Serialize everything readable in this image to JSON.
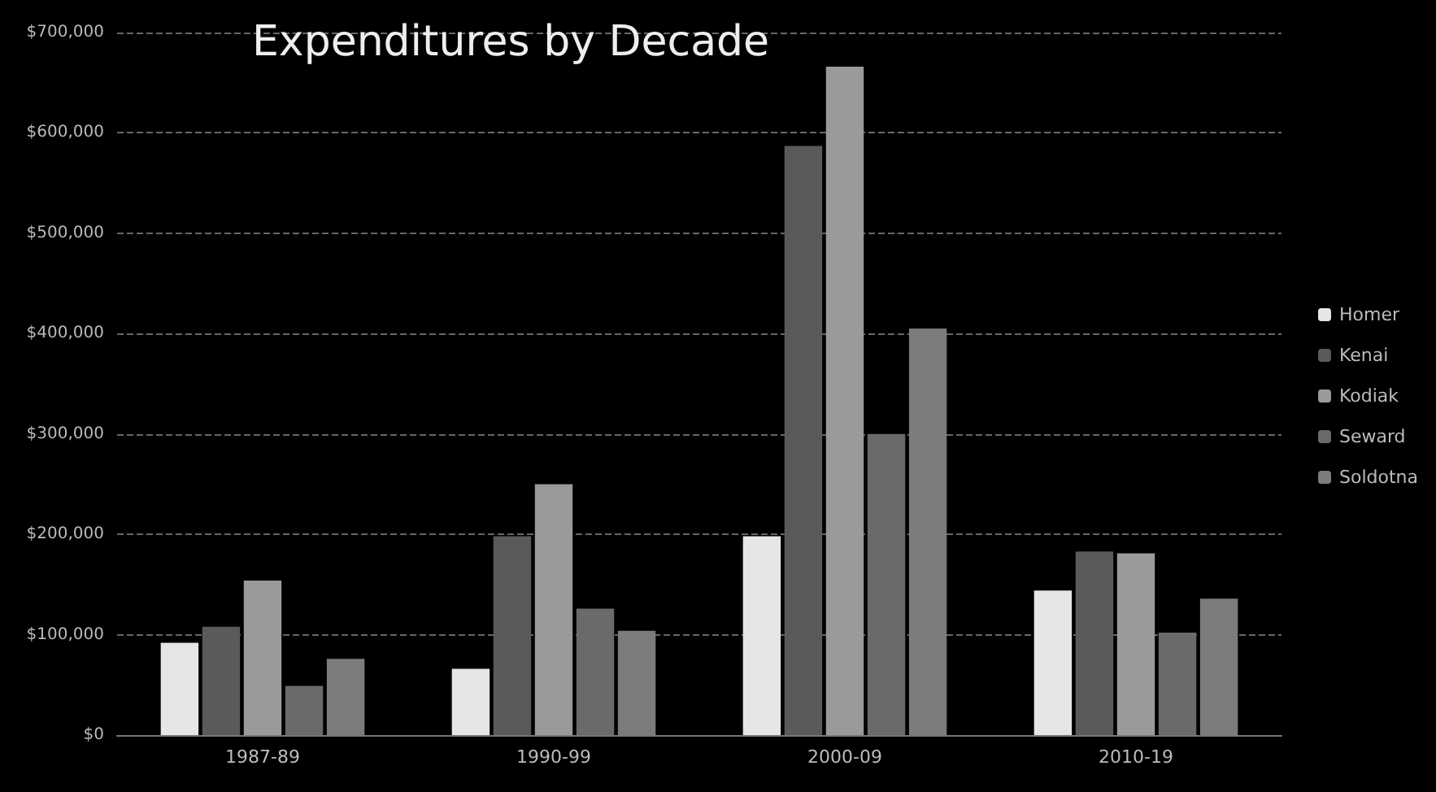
{
  "chart_data": {
    "type": "bar",
    "title": "Expenditures by Decade",
    "categories": [
      "1987-89",
      "1990-99",
      "2000-09",
      "2010-19"
    ],
    "series": [
      {
        "name": "Homer",
        "color": "#e6e6e6",
        "values": [
          92000,
          66000,
          198000,
          144000
        ]
      },
      {
        "name": "Kenai",
        "color": "#5a5a5a",
        "values": [
          108000,
          198000,
          587000,
          183000
        ]
      },
      {
        "name": "Kodiak",
        "color": "#9a9a9a",
        "values": [
          154000,
          250000,
          666000,
          181000
        ]
      },
      {
        "name": "Seward",
        "color": "#6a6a6a",
        "values": [
          49000,
          126000,
          300000,
          102000
        ]
      },
      {
        "name": "Soldotna",
        "color": "#7c7c7c",
        "values": [
          76000,
          104000,
          405000,
          136000
        ]
      }
    ],
    "ylim": [
      0,
      700000
    ],
    "yticks": [
      {
        "value": 0,
        "label": "$0"
      },
      {
        "value": 100000,
        "label": "$100,000"
      },
      {
        "value": 200000,
        "label": "$200,000"
      },
      {
        "value": 300000,
        "label": "$300,000"
      },
      {
        "value": 400000,
        "label": "$400,000"
      },
      {
        "value": 500000,
        "label": "$500,000"
      },
      {
        "value": 600000,
        "label": "$600,000"
      },
      {
        "value": 700000,
        "label": "$700,000"
      }
    ],
    "grid": "y",
    "legend": "right"
  }
}
